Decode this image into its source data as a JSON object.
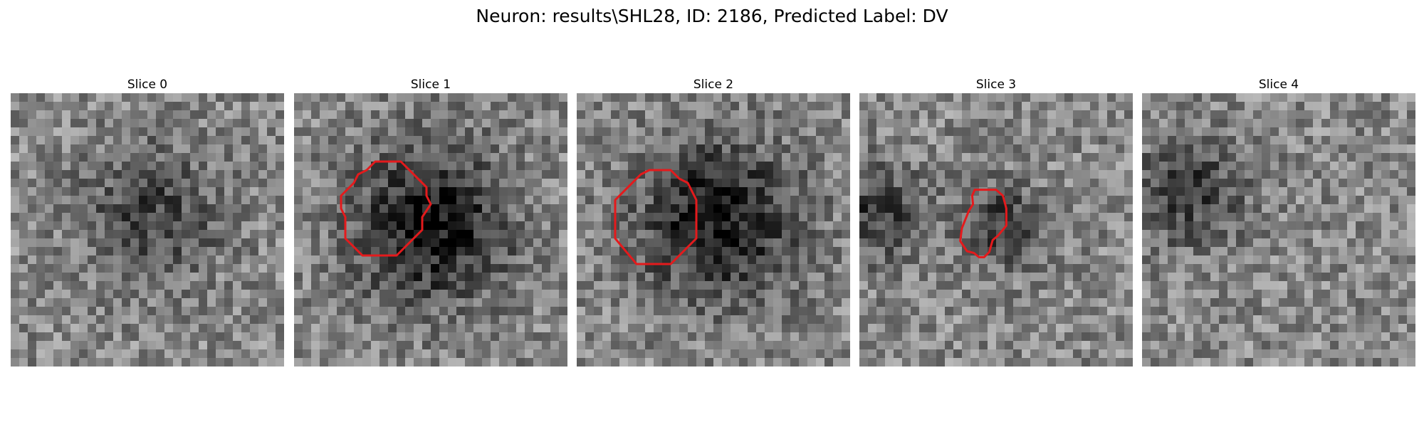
{
  "figure": {
    "title": "Neuron: results\\SHL28, ID: 2186, Predicted Label: DV"
  },
  "colors": {
    "contour": "#e41a1c"
  },
  "slices": [
    {
      "title": "Slice 0",
      "contour": false,
      "darkness": 0.55
    },
    {
      "title": "Slice 1",
      "contour": true,
      "darkness": 0.9
    },
    {
      "title": "Slice 2",
      "contour": true,
      "darkness": 0.9
    },
    {
      "title": "Slice 3",
      "contour": true,
      "darkness": 0.6
    },
    {
      "title": "Slice 4",
      "contour": false,
      "darkness": 0.6
    }
  ]
}
